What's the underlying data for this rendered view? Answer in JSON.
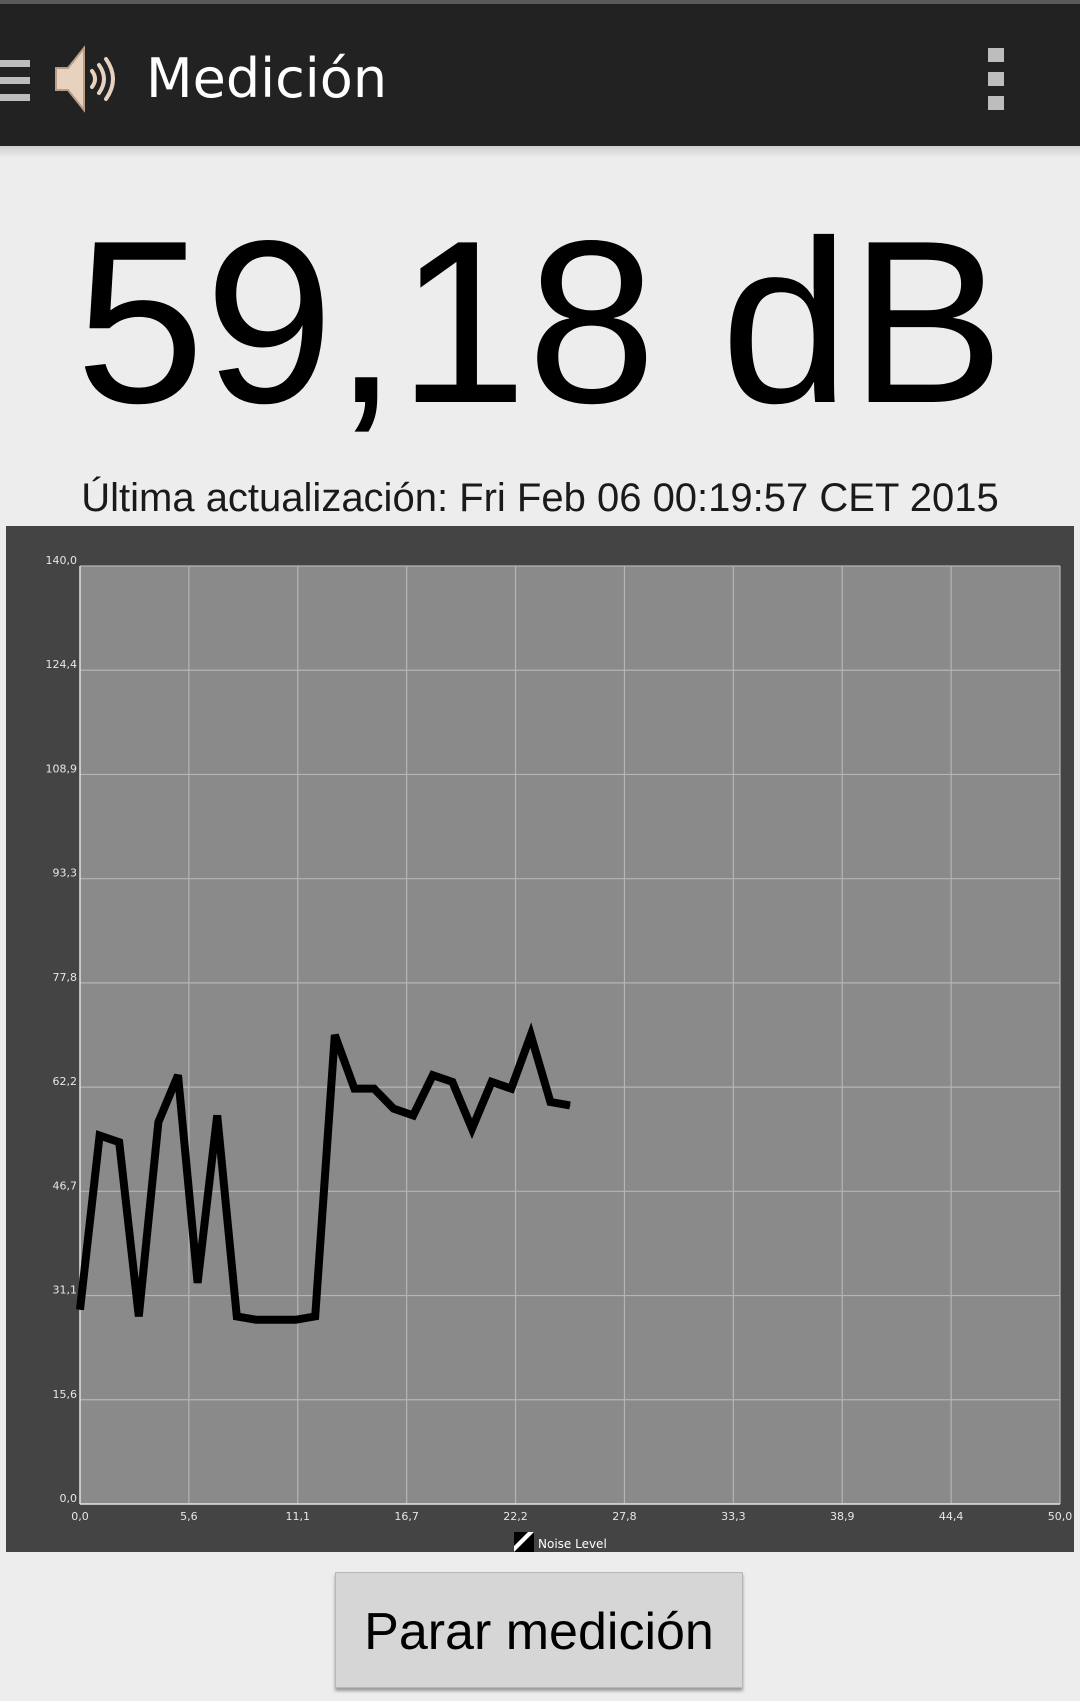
{
  "actionbar": {
    "title": "Medición",
    "menu_icon": "hamburger-menu-icon",
    "app_icon": "speaker-sound-icon",
    "overflow_icon": "vertical-dots-icon"
  },
  "reading": {
    "value_text": "59,18 dB"
  },
  "last_update": {
    "text": "Última actualización: Fri Feb 06 00:19:57 CET 2015"
  },
  "colors": {
    "actionbar_bg": "#222222",
    "page_bg": "#ededed",
    "chart_frame": "#444444",
    "plot_bg": "#8a8a8a",
    "grid": "#b5b5b5",
    "series_line": "#000000"
  },
  "chart_data": {
    "type": "line",
    "title": "",
    "xlabel": "",
    "ylabel": "",
    "xlim": [
      0,
      50
    ],
    "ylim": [
      0,
      140
    ],
    "x_ticks": [
      "0,0",
      "5,6",
      "11,1",
      "16,7",
      "22,2",
      "27,8",
      "33,3",
      "38,9",
      "44,4",
      "50,0"
    ],
    "y_ticks": [
      "0,0",
      "15,6",
      "31,1",
      "46,7",
      "62,2",
      "77,8",
      "93,3",
      "108,9",
      "124,4",
      "140,0"
    ],
    "grid": true,
    "legend": "bottom-center",
    "series": [
      {
        "name": "Noise Level",
        "x": [
          0,
          1,
          2,
          3,
          4,
          5,
          6,
          7,
          8,
          9,
          10,
          11,
          12,
          13,
          14,
          15,
          16,
          17,
          18,
          19,
          20,
          21,
          22,
          23,
          24,
          25
        ],
        "y": [
          29,
          55,
          54,
          28,
          57,
          64,
          33,
          58,
          28,
          27.5,
          27.5,
          27.5,
          28,
          70,
          62,
          62,
          59,
          58,
          64,
          63,
          56,
          63,
          62,
          70,
          60,
          59.5
        ]
      }
    ]
  },
  "stop_button": {
    "label": "Parar medición"
  }
}
